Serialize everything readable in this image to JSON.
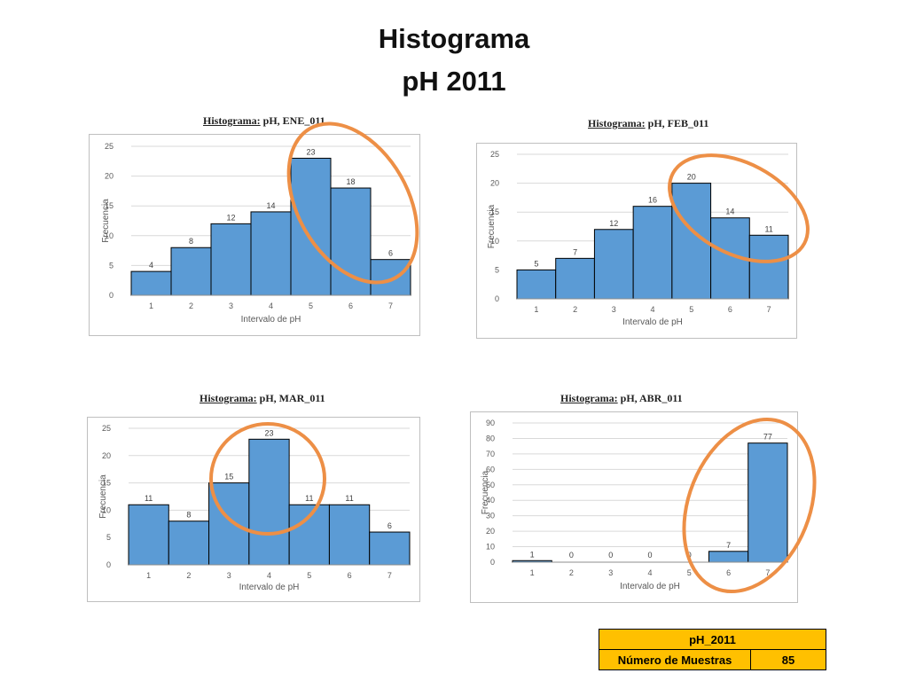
{
  "page": {
    "title_line1": "Histograma",
    "title_line2": "pH 2011"
  },
  "colors": {
    "bar": "#5b9bd5",
    "bar_edge": "#000000",
    "highlight_ellipse": "#ed8f46",
    "table_fill": "#ffc000",
    "grid": "#d9d9d9"
  },
  "chart_data": [
    {
      "type": "bar",
      "title_prefix": "Histograma:",
      "title": "pH, ENE_011",
      "categories": [
        "1",
        "2",
        "3",
        "4",
        "5",
        "6",
        "7"
      ],
      "values": [
        4,
        8,
        12,
        14,
        23,
        18,
        6
      ],
      "xlabel": "Intervalo de pH",
      "ylabel": "Frecuencia",
      "ylim": [
        0,
        25
      ],
      "yticks": [
        0,
        5,
        10,
        15,
        20,
        25
      ],
      "grid": true,
      "highlight": "ellipse around bars 5–7"
    },
    {
      "type": "bar",
      "title_prefix": "Histograma:",
      "title": "pH, FEB_011",
      "categories": [
        "1",
        "2",
        "3",
        "4",
        "5",
        "6",
        "7"
      ],
      "values": [
        5,
        7,
        12,
        16,
        20,
        14,
        11
      ],
      "xlabel": "Intervalo de pH",
      "ylabel": "Frecuencia",
      "ylim": [
        0,
        25
      ],
      "yticks": [
        0,
        5,
        10,
        15,
        20,
        25
      ],
      "grid": true,
      "highlight": "ellipse around bars 5–7"
    },
    {
      "type": "bar",
      "title_prefix": "Histograma:",
      "title": "pH, MAR_011",
      "categories": [
        "1",
        "2",
        "3",
        "4",
        "5",
        "6",
        "7"
      ],
      "values": [
        11,
        8,
        15,
        23,
        11,
        11,
        6
      ],
      "xlabel": "Intervalo de pH",
      "ylabel": "Frecuencia",
      "ylim": [
        0,
        25
      ],
      "yticks": [
        0,
        5,
        10,
        15,
        20,
        25
      ],
      "grid": true,
      "highlight": "circle around bars 3–4"
    },
    {
      "type": "bar",
      "title_prefix": "Histograma:",
      "title": "pH, ABR_011",
      "categories": [
        "1",
        "2",
        "3",
        "4",
        "5",
        "6",
        "7"
      ],
      "values": [
        1,
        0,
        0,
        0,
        0,
        7,
        77
      ],
      "xlabel": "Intervalo de pH",
      "ylabel": "Frecuencia",
      "ylim": [
        0,
        90
      ],
      "yticks": [
        0,
        10,
        20,
        30,
        40,
        50,
        60,
        70,
        80,
        90
      ],
      "grid": true,
      "highlight": "ellipse around bars 6–7"
    }
  ],
  "summary_table": {
    "header": "pH_2011",
    "row_label": "Número de Muestras",
    "row_value": "85"
  }
}
